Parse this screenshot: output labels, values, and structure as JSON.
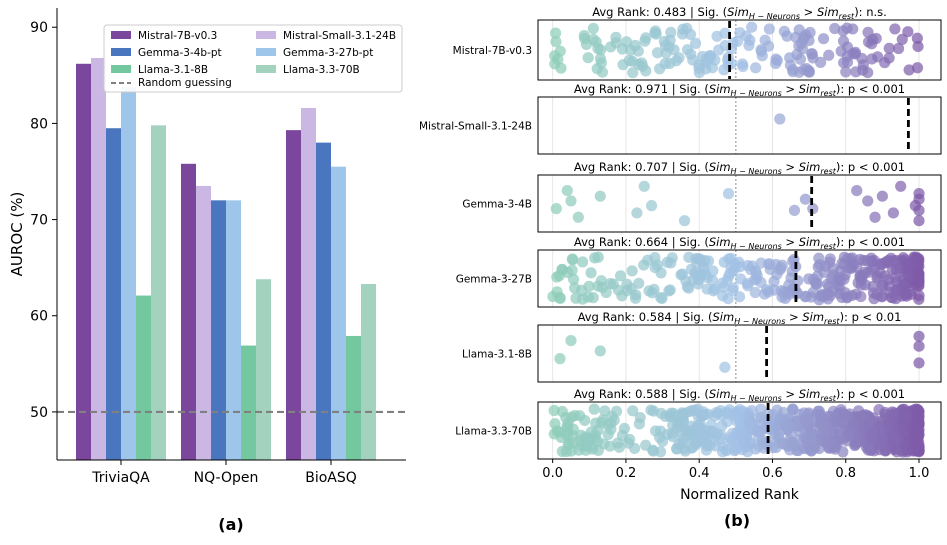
{
  "chart_data": [
    {
      "type": "bar",
      "panel_label": "(a)",
      "title": "",
      "xlabel": "",
      "ylabel": "AUROC (%)",
      "ylim": [
        45,
        92
      ],
      "yticks": [
        50,
        60,
        70,
        80,
        90
      ],
      "categories": [
        "TriviaQA",
        "NQ-Open",
        "BioASQ"
      ],
      "legend_position": "top-right",
      "series": [
        {
          "name": "Mistral-7B-v0.3",
          "color": "#7b479c",
          "values": [
            86.2,
            75.8,
            79.3
          ]
        },
        {
          "name": "Mistral-Small-3.1-24B",
          "color": "#cbb7e4",
          "values": [
            86.8,
            73.5,
            81.6
          ]
        },
        {
          "name": "Gemma-3-4b-pt",
          "color": "#4a76bf",
          "values": [
            79.5,
            72.0,
            78.0
          ]
        },
        {
          "name": "Gemma-3-27b-pt",
          "color": "#9ec5ea",
          "values": [
            83.8,
            72.0,
            75.5
          ]
        },
        {
          "name": "Llama-3.1-8B",
          "color": "#74c8a0",
          "values": [
            62.1,
            56.9,
            57.9
          ]
        },
        {
          "name": "Llama-3.3-70B",
          "color": "#a3d3bf",
          "values": [
            79.8,
            63.8,
            63.3
          ]
        }
      ],
      "reference_line": {
        "label": "Random guessing",
        "value": 50,
        "color": "#808080"
      }
    },
    {
      "type": "scatter",
      "panel_label": "(b)",
      "xlabel": "Normalized Rank",
      "xlim": [
        -0.04,
        1.06
      ],
      "xticks": [
        0.0,
        0.2,
        0.4,
        0.6,
        0.8,
        1.0
      ],
      "xtick_labels": [
        "0.0",
        "0.2",
        "0.4",
        "0.6",
        "0.8",
        "1.0"
      ],
      "reference_x": 0.5,
      "rows": [
        {
          "model": "Mistral-7B-v0.3",
          "avg_rank": 0.483,
          "avg_rank_text": "0.483",
          "sig_text": "n.s.",
          "n_points": 170,
          "uniform": true
        },
        {
          "model": "Mistral-Small-3.1-24B",
          "avg_rank": 0.971,
          "avg_rank_text": "0.971",
          "sig_text": "p < 0.001",
          "points": [
            0.62
          ]
        },
        {
          "model": "Gemma-3-4B",
          "avg_rank": 0.707,
          "avg_rank_text": "0.707",
          "sig_text": "p < 0.001",
          "points": [
            0.01,
            0.04,
            0.05,
            0.07,
            0.13,
            0.23,
            0.25,
            0.27,
            0.36,
            0.48,
            0.66,
            0.69,
            0.71,
            0.83,
            0.86,
            0.88,
            0.9,
            0.93,
            0.95,
            0.99,
            1.0,
            1.0,
            1.0,
            1.0
          ]
        },
        {
          "model": "Gemma-3-27B",
          "avg_rank": 0.664,
          "avg_rank_text": "0.664",
          "sig_text": "p < 0.001",
          "n_points": 330,
          "skew": 0.55
        },
        {
          "model": "Llama-3.1-8B",
          "avg_rank": 0.584,
          "avg_rank_text": "0.584",
          "sig_text": "p < 0.01",
          "points": [
            0.02,
            0.05,
            0.13,
            0.47,
            1.0,
            1.0,
            1.0
          ]
        },
        {
          "model": "Llama-3.3-70B",
          "avg_rank": 0.588,
          "avg_rank_text": "0.588",
          "sig_text": "p < 0.001",
          "n_points": 700,
          "skew": 0.65
        }
      ],
      "colormap": [
        "#8ecdb8",
        "#a3c2e6",
        "#7e5aa8"
      ]
    }
  ],
  "labels": {
    "panel_a": "(a)",
    "panel_b": "(b)",
    "avg_rank_prefix": "Avg Rank: ",
    "sig_prefix": "Sig. (",
    "sim": "Sim",
    "sub_h": "H − Neurons",
    "gt": " > ",
    "sub_rest": "rest",
    "sig_suffix": "): "
  }
}
